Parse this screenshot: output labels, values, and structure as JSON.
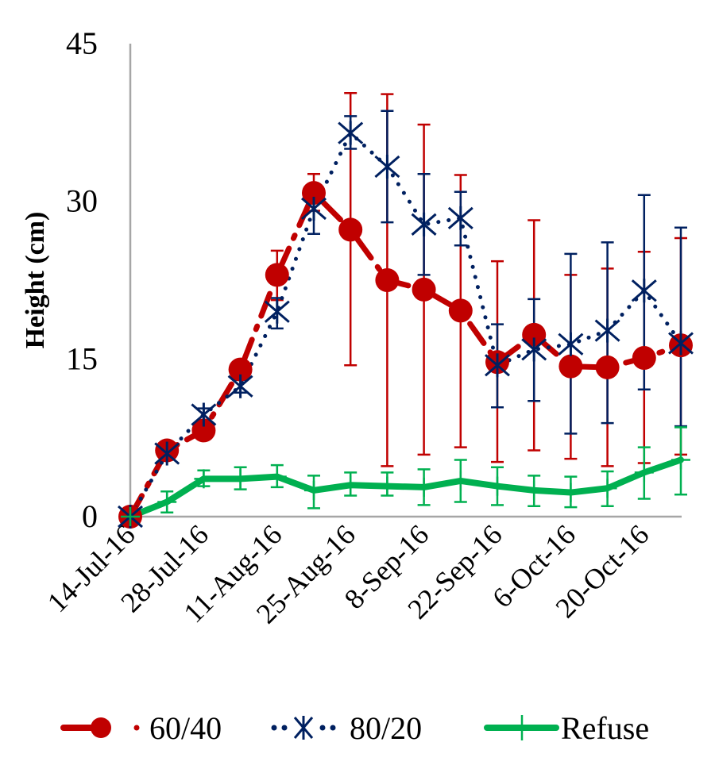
{
  "chart_data": {
    "type": "line",
    "title": "",
    "xlabel": "",
    "ylabel": "Height (cm)",
    "ylim": [
      0,
      45
    ],
    "yticks": [
      "0",
      "15",
      "30",
      "45"
    ],
    "ytick_values": [
      0,
      15,
      30,
      45
    ],
    "x": [
      "14-Jul-16",
      "21-Jul-16",
      "28-Jul-16",
      "4-Aug-16",
      "11-Aug-16",
      "18-Aug-16",
      "25-Aug-16",
      "1-Sep-16",
      "8-Sep-16",
      "15-Sep-16",
      "22-Sep-16",
      "29-Sep-16",
      "6-Oct-16",
      "13-Oct-16",
      "20-Oct-16",
      "27-Oct-16"
    ],
    "xtick_labels": [
      "14-Jul-16",
      "28-Jul-16",
      "11-Aug-16",
      "25-Aug-16",
      "8-Sep-16",
      "22-Sep-16",
      "6-Oct-16",
      "20-Oct-16"
    ],
    "xtick_indices": [
      0,
      2,
      4,
      6,
      8,
      10,
      12,
      14
    ],
    "grid": false,
    "legend_position": "bottom",
    "series": [
      {
        "name": "60/40",
        "color": "#C00000",
        "marker": "circle",
        "line_style": "long-dash-dot",
        "values": [
          0,
          6.3,
          8.2,
          14.0,
          23.0,
          30.8,
          27.3,
          22.5,
          21.6,
          19.6,
          14.7,
          17.3,
          14.3,
          14.2,
          15.1,
          16.3
        ],
        "error_upper": [
          0,
          6.8,
          8.8,
          14.5,
          25.3,
          32.6,
          40.3,
          40.2,
          37.3,
          32.5,
          24.3,
          28.2,
          23.0,
          23.6,
          25.2,
          26.5
        ],
        "error_lower": [
          0,
          5.8,
          7.6,
          13.5,
          20.6,
          29.1,
          14.4,
          4.8,
          5.9,
          6.6,
          5.2,
          6.3,
          5.5,
          4.8,
          5.1,
          5.9
        ]
      },
      {
        "name": "80/20",
        "color": "#002060",
        "marker": "star-x",
        "line_style": "round-dot",
        "values": [
          0,
          6.0,
          9.7,
          12.4,
          19.5,
          29.3,
          36.5,
          33.3,
          27.8,
          28.4,
          14.4,
          15.9,
          16.4,
          17.7,
          21.5,
          16.5
        ],
        "error_upper": [
          0,
          6.6,
          10.3,
          13.0,
          20.8,
          30.1,
          38.1,
          38.6,
          32.6,
          30.9,
          18.3,
          20.7,
          25.0,
          26.1,
          30.6,
          27.5
        ],
        "error_lower": [
          0,
          5.4,
          9.1,
          11.8,
          17.9,
          26.9,
          35.0,
          28.0,
          23.0,
          25.8,
          10.4,
          11.0,
          7.9,
          8.9,
          12.1,
          8.6
        ]
      },
      {
        "name": "Refuse",
        "color": "#00B050",
        "marker": "plus",
        "line_style": "solid",
        "values": [
          0,
          1.4,
          3.6,
          3.6,
          3.8,
          2.5,
          3.0,
          2.9,
          2.8,
          3.4,
          2.9,
          2.5,
          2.3,
          2.7,
          4.2,
          5.4
        ],
        "error_upper": [
          0,
          2.4,
          4.4,
          4.7,
          4.9,
          3.9,
          4.2,
          4.2,
          4.5,
          5.4,
          4.7,
          3.9,
          3.8,
          4.3,
          6.6,
          8.5
        ],
        "error_lower": [
          0,
          0.4,
          2.9,
          2.6,
          2.8,
          0.8,
          2.0,
          2.0,
          1.1,
          1.4,
          1.1,
          1.0,
          0.9,
          1.0,
          1.7,
          2.1
        ]
      }
    ]
  }
}
